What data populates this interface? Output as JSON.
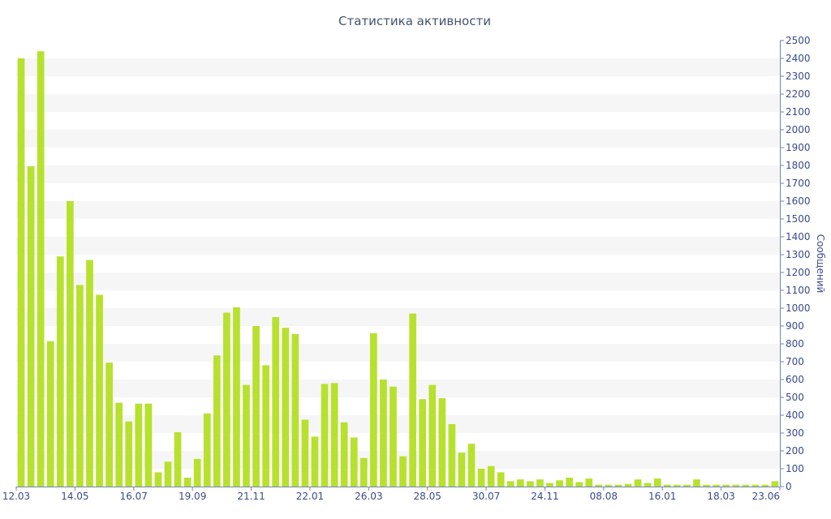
{
  "chart_data": {
    "type": "bar",
    "title": "Статистика активности",
    "ylabel": "Сообщений",
    "ylim": [
      0,
      2500
    ],
    "y_ticks": [
      "0",
      "100",
      "200",
      "300",
      "400",
      "500",
      "600",
      "700",
      "800",
      "900",
      "1000",
      "1100",
      "1200",
      "1300",
      "1400",
      "1500",
      "1600",
      "1700",
      "1800",
      "1900",
      "2000",
      "2100",
      "2200",
      "2300",
      "2400",
      "2500"
    ],
    "x_tick_labels": [
      "12.03",
      "14.05",
      "16.07",
      "19.09",
      "21.11",
      "22.01",
      "26.03",
      "28.05",
      "30.07",
      "24.11",
      "08.08",
      "16.01",
      "18.03",
      "23.06"
    ],
    "grid": "alternating horizontal bands",
    "bar_color": "#b7e12e",
    "values": [
      2400,
      1795,
      2440,
      815,
      1290,
      1600,
      1130,
      1270,
      1075,
      695,
      470,
      365,
      465,
      465,
      80,
      140,
      305,
      50,
      155,
      410,
      735,
      975,
      1005,
      570,
      900,
      680,
      950,
      890,
      855,
      375,
      280,
      575,
      580,
      360,
      275,
      160,
      860,
      600,
      560,
      170,
      970,
      490,
      570,
      495,
      350,
      190,
      240,
      100,
      115,
      80,
      30,
      40,
      30,
      40,
      20,
      35,
      50,
      25,
      45,
      10,
      10,
      10,
      15,
      40,
      20,
      45,
      10,
      10,
      10,
      40,
      10,
      10,
      10,
      10,
      10,
      10,
      10,
      30
    ]
  }
}
